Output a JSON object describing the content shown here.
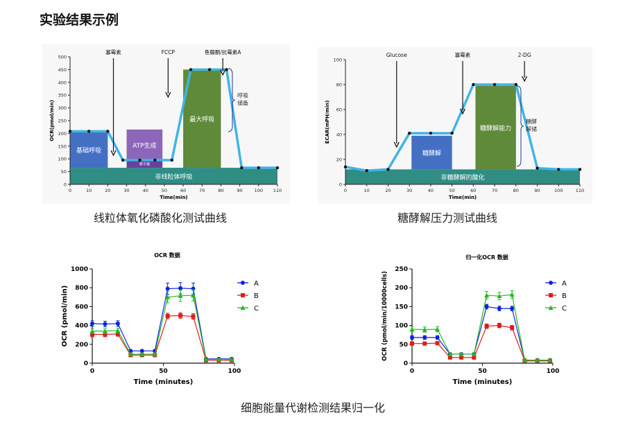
{
  "page_title": "实验结果示例",
  "captions": {
    "mito": "线粒体氧化磷酸化测试曲线",
    "glyco": "糖酵解压力测试曲线",
    "bottom": "细胞能量代谢检测结果归一化"
  },
  "colors": {
    "line": "#3fb4e6",
    "basal": "#4470c4",
    "atp": "#8c66b8",
    "atp_small": "#6a3fa0",
    "maximal": "#5e8a3a",
    "nonmito": "#2f8d84",
    "series_a": "#0a22e0",
    "series_b": "#e01b1b",
    "series_c": "#22b822"
  },
  "chart_data": [
    {
      "id": "mito",
      "type": "line",
      "ylabel": "OCR(pmol/min)",
      "xlabel": "Time(min)",
      "xlim": [
        0,
        110
      ],
      "ylim": [
        0,
        500
      ],
      "xticks": [
        0,
        10,
        20,
        30,
        40,
        50,
        60,
        70,
        80,
        90,
        100,
        110
      ],
      "yticks": [
        0,
        50,
        100,
        150,
        200,
        250,
        300,
        350,
        400,
        450,
        500
      ],
      "x": [
        0,
        10,
        20,
        28,
        37,
        45,
        54,
        64,
        74,
        83,
        91,
        100,
        110
      ],
      "y": [
        208,
        208,
        208,
        95,
        95,
        95,
        95,
        450,
        450,
        450,
        65,
        65,
        65
      ],
      "injections": [
        {
          "label": "寡霉素",
          "x": 23
        },
        {
          "label": "FCCP",
          "x": 52
        },
        {
          "label": "鱼藤酮/抗霉素A",
          "x": 81
        }
      ],
      "regions": [
        {
          "label": "基础呼吸",
          "x0": 0,
          "x1": 20,
          "y0": 65,
          "y1": 208,
          "color": "basal"
        },
        {
          "label": "ATP生成",
          "x0": 30,
          "x1": 49,
          "y0": 95,
          "y1": 215,
          "color": "atp"
        },
        {
          "label": "质子漏",
          "x0": 30,
          "x1": 49,
          "y0": 65,
          "y1": 95,
          "color": "atp_small"
        },
        {
          "label": "最大呼吸",
          "x0": 60,
          "x1": 80,
          "y0": 65,
          "y1": 450,
          "color": "maximal"
        },
        {
          "label": "非线粒体呼吸",
          "x0": 0,
          "x1": 110,
          "y0": 0,
          "y1": 65,
          "color": "nonmito"
        }
      ],
      "brace_label": [
        "呼吸",
        "储备"
      ]
    },
    {
      "id": "glyco",
      "type": "line",
      "ylabel": "ECAR(mPH/min)",
      "xlabel": "Time(min)",
      "xlim": [
        0,
        110
      ],
      "ylim": [
        0,
        100
      ],
      "xticks": [
        0,
        10,
        20,
        30,
        40,
        50,
        60,
        70,
        80,
        90,
        100,
        110
      ],
      "yticks": [
        0,
        20,
        40,
        60,
        80,
        100
      ],
      "x": [
        0,
        10,
        20,
        30,
        40,
        50,
        60,
        70,
        80,
        90,
        100,
        110
      ],
      "y": [
        14,
        11,
        12,
        41,
        41,
        41,
        80,
        80,
        80,
        13,
        12,
        12
      ],
      "injections": [
        {
          "label": "Glucose",
          "x": 24
        },
        {
          "label": "寡霉素",
          "x": 55
        },
        {
          "label": "2-DG",
          "x": 84
        }
      ],
      "regions": [
        {
          "label": "糖酵解",
          "x0": 31,
          "x1": 50,
          "y0": 12,
          "y1": 39,
          "color": "basal"
        },
        {
          "label": "糖酵解能力",
          "x0": 61,
          "x1": 80,
          "y0": 12,
          "y1": 79,
          "color": "maximal"
        },
        {
          "label": "非糖酵解的酸化",
          "x0": 0,
          "x1": 110,
          "y0": 0,
          "y1": 12,
          "color": "nonmito"
        }
      ],
      "brace_label": [
        "糖酵",
        "解储"
      ]
    },
    {
      "id": "ocr_data",
      "type": "line",
      "title": "OCR 数据",
      "ylabel": "OCR (pmol/min)",
      "xlabel": "Time (minutes)",
      "xlim": [
        0,
        100
      ],
      "ylim": [
        0,
        1000
      ],
      "xticks": [
        0,
        50,
        100
      ],
      "yticks": [
        0,
        200,
        400,
        600,
        800,
        1000
      ],
      "x": [
        0,
        9,
        18,
        27,
        35,
        44,
        53,
        62,
        71,
        80,
        89,
        98
      ],
      "series": [
        {
          "name": "A",
          "values": [
            420,
            415,
            420,
            130,
            130,
            130,
            790,
            795,
            790,
            45,
            45,
            45
          ],
          "err": [
            30,
            30,
            30,
            10,
            10,
            10,
            60,
            60,
            60,
            5,
            5,
            5
          ]
        },
        {
          "name": "B",
          "values": [
            305,
            305,
            310,
            85,
            85,
            85,
            500,
            505,
            495,
            30,
            30,
            30
          ],
          "err": [
            25,
            25,
            25,
            10,
            10,
            10,
            30,
            30,
            30,
            5,
            5,
            5
          ]
        },
        {
          "name": "C",
          "values": [
            340,
            340,
            345,
            95,
            95,
            95,
            700,
            715,
            720,
            40,
            40,
            40
          ],
          "err": [
            25,
            25,
            25,
            10,
            10,
            10,
            60,
            60,
            60,
            5,
            5,
            5
          ]
        }
      ]
    },
    {
      "id": "norm_ocr",
      "type": "line",
      "title": "归一化OCR 数据",
      "ylabel": "OCR (pmol/min/10000cells)",
      "xlabel": "Time (minutes)",
      "xlim": [
        0,
        100
      ],
      "ylim": [
        0,
        250
      ],
      "xticks": [
        0,
        50,
        100
      ],
      "yticks": [
        0,
        50,
        100,
        150,
        200,
        250
      ],
      "x": [
        0,
        9,
        18,
        27,
        35,
        44,
        53,
        62,
        71,
        80,
        89,
        98
      ],
      "series": [
        {
          "name": "A",
          "values": [
            68,
            68,
            68,
            24,
            24,
            24,
            150,
            145,
            145,
            8,
            8,
            8
          ],
          "err": [
            5,
            5,
            5,
            3,
            3,
            3,
            6,
            6,
            6,
            2,
            2,
            2
          ]
        },
        {
          "name": "B",
          "values": [
            52,
            52,
            53,
            15,
            15,
            15,
            98,
            100,
            94,
            6,
            6,
            6
          ],
          "err": [
            4,
            4,
            4,
            3,
            3,
            3,
            6,
            6,
            6,
            2,
            2,
            2
          ]
        },
        {
          "name": "C",
          "values": [
            90,
            89,
            90,
            24,
            24,
            24,
            180,
            178,
            182,
            8,
            8,
            8
          ],
          "err": [
            7,
            7,
            7,
            3,
            3,
            3,
            10,
            10,
            10,
            2,
            2,
            2
          ]
        }
      ]
    }
  ]
}
